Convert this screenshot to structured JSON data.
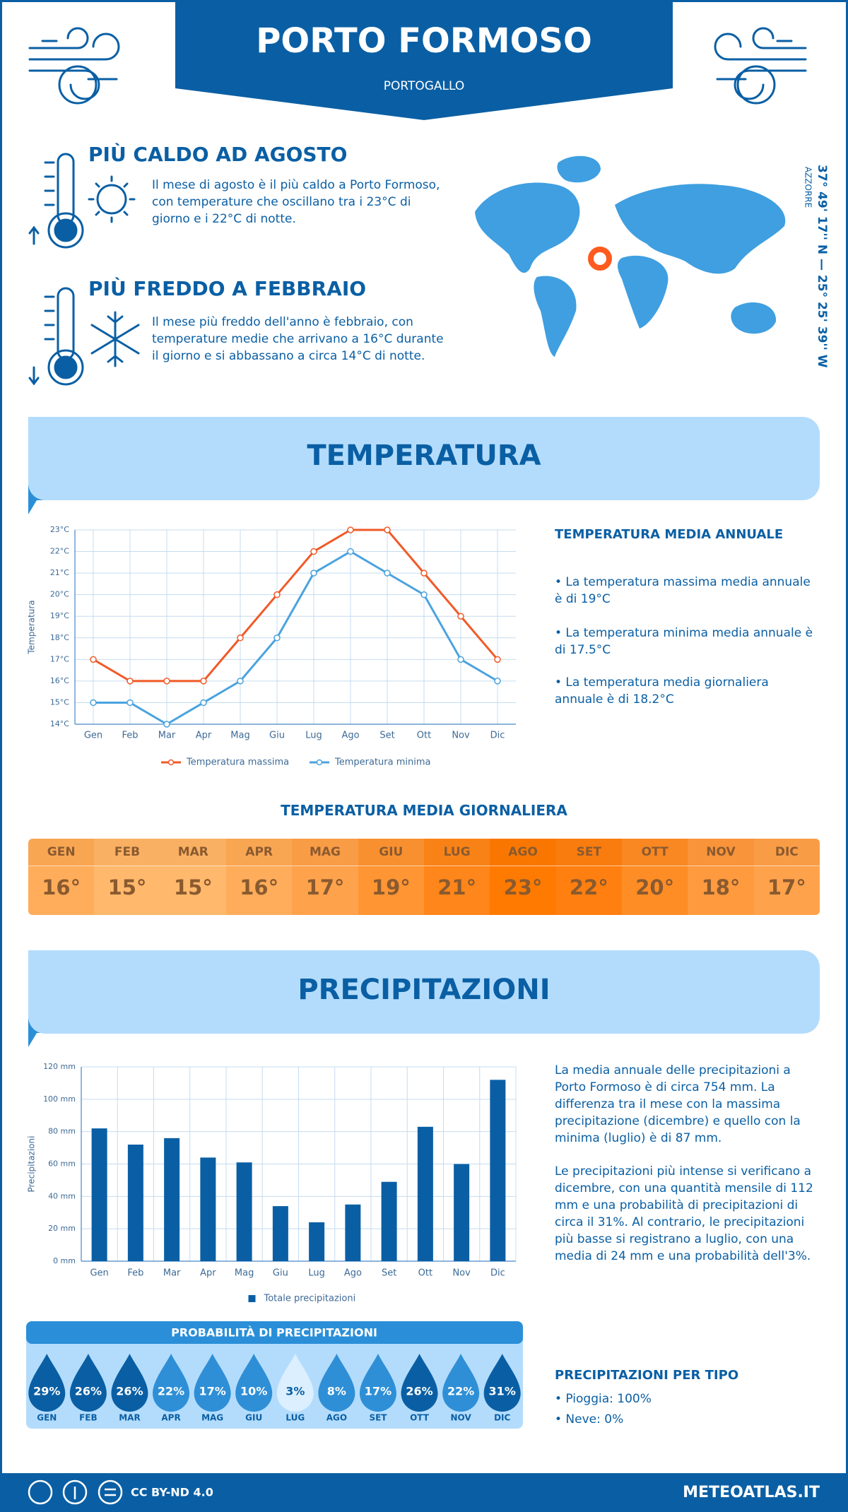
{
  "header": {
    "title": "PORTO FORMOSO",
    "subtitle": "PORTOGALLO"
  },
  "facts": [
    {
      "title": "PIÙ CALDO AD AGOSTO",
      "text": "Il mese di agosto è il più caldo a Porto Formoso, con temperature che oscillano tra i 23°C di giorno e i 22°C di notte."
    },
    {
      "title": "PIÙ FREDDO A FEBBRAIO",
      "text": "Il mese più freddo dell'anno è febbraio, con temperature medie che arrivano a 16°C durante il giorno e si abbassano a circa 14°C di notte."
    }
  ],
  "location": {
    "region": "AZZORRE",
    "coordinates": "37° 49' 17'' N — 25° 25' 39'' W"
  },
  "temperature_section": {
    "title": "TEMPERATURA",
    "annual_title": "TEMPERATURA MEDIA ANNUALE",
    "annual_items": [
      "• La temperatura massima media annuale è di 19°C",
      "• La temperatura minima media annuale è di 17.5°C",
      "• La temperatura media giornaliera annuale è di 18.2°C"
    ],
    "daily_title": "TEMPERATURA MEDIA GIORNALIERA"
  },
  "chart_data": [
    {
      "type": "line",
      "y_label": "Temperatura",
      "categories": [
        "Gen",
        "Feb",
        "Mar",
        "Apr",
        "Mag",
        "Giu",
        "Lug",
        "Ago",
        "Set",
        "Ott",
        "Nov",
        "Dic"
      ],
      "series": [
        {
          "name": "Temperatura massima",
          "color": "#f05a28",
          "values": [
            17,
            16,
            16,
            16,
            18,
            20,
            22,
            23,
            23,
            21,
            19,
            17
          ]
        },
        {
          "name": "Temperatura minima",
          "color": "#4aa3df",
          "values": [
            15,
            15,
            14,
            15,
            16,
            18,
            21,
            22,
            21,
            20,
            17,
            16
          ]
        }
      ],
      "ylim": [
        14,
        23
      ],
      "yticks": [
        {
          "value": 14,
          "label": "14°C"
        },
        {
          "value": 15,
          "label": "15°C"
        },
        {
          "value": 16,
          "label": "16°C"
        },
        {
          "value": 17,
          "label": "17°C"
        },
        {
          "value": 18,
          "label": "18°C"
        },
        {
          "value": 19,
          "label": "19°C"
        },
        {
          "value": 20,
          "label": "20°C"
        },
        {
          "value": 21,
          "label": "21°C"
        },
        {
          "value": 22,
          "label": "22°C"
        },
        {
          "value": 23,
          "label": "23°C"
        }
      ],
      "grid": true
    },
    {
      "type": "bar",
      "y_label": "Precipitazioni",
      "categories": [
        "Gen",
        "Feb",
        "Mar",
        "Apr",
        "Mag",
        "Giu",
        "Lug",
        "Ago",
        "Set",
        "Ott",
        "Nov",
        "Dic"
      ],
      "series": [
        {
          "name": "Totale precipitazioni",
          "color": "#0a5fa4",
          "values": [
            82,
            72,
            76,
            64,
            61,
            34,
            24,
            35,
            49,
            83,
            60,
            112
          ]
        }
      ],
      "ylim": [
        0,
        120
      ],
      "yticks": [
        {
          "value": 0,
          "label": "0 mm"
        },
        {
          "value": 20,
          "label": "20 mm"
        },
        {
          "value": 40,
          "label": "40 mm"
        },
        {
          "value": 60,
          "label": "60 mm"
        },
        {
          "value": 80,
          "label": "80 mm"
        },
        {
          "value": 100,
          "label": "100 mm"
        },
        {
          "value": 120,
          "label": "120 mm"
        }
      ],
      "grid": true
    }
  ],
  "daily_table": {
    "months": [
      "GEN",
      "FEB",
      "MAR",
      "APR",
      "MAG",
      "GIU",
      "LUG",
      "AGO",
      "SET",
      "OTT",
      "NOV",
      "DIC"
    ],
    "values": [
      "16°",
      "15°",
      "15°",
      "16°",
      "17°",
      "19°",
      "21°",
      "23°",
      "22°",
      "20°",
      "18°",
      "17°"
    ],
    "colors": [
      "#ffad5b",
      "#ffb86c",
      "#ffb86c",
      "#ffad5b",
      "#ffa24c",
      "#ff9533",
      "#ff861a",
      "#ff7a00",
      "#ff7f10",
      "#ff8d26",
      "#ff9a3f",
      "#ffa24c"
    ]
  },
  "precipitation_section": {
    "title": "PRECIPITAZIONI",
    "paragraphs": [
      "La media annuale delle precipitazioni a Porto Formoso è di circa 754 mm. La differenza tra il mese con la massima precipitazione (dicembre) e quello con la minima (luglio) è di 87 mm.",
      "Le precipitazioni più intense si verificano a dicembre, con una quantità mensile di 112 mm e una probabilità di precipitazioni di circa il 31%. Al contrario, le precipitazioni più basse si registrano a luglio, con una media di 24 mm e una probabilità dell'3%."
    ],
    "probability_title": "PROBABILITÀ DI PRECIPITAZIONI",
    "type_title": "PRECIPITAZIONI PER TIPO",
    "type_items": [
      "• Pioggia: 100%",
      "• Neve: 0%"
    ]
  },
  "precipitation_probability": {
    "months": [
      "GEN",
      "FEB",
      "MAR",
      "APR",
      "MAG",
      "GIU",
      "LUG",
      "AGO",
      "SET",
      "OTT",
      "NOV",
      "DIC"
    ],
    "values": [
      29,
      26,
      26,
      22,
      17,
      10,
      3,
      8,
      17,
      26,
      22,
      31
    ],
    "value_labels": [
      "29%",
      "26%",
      "26%",
      "22%",
      "17%",
      "10%",
      "3%",
      "8%",
      "17%",
      "26%",
      "22%",
      "31%"
    ]
  },
  "footer": {
    "license": "CC BY-ND 4.0",
    "site": "METEOATLAS.IT"
  }
}
